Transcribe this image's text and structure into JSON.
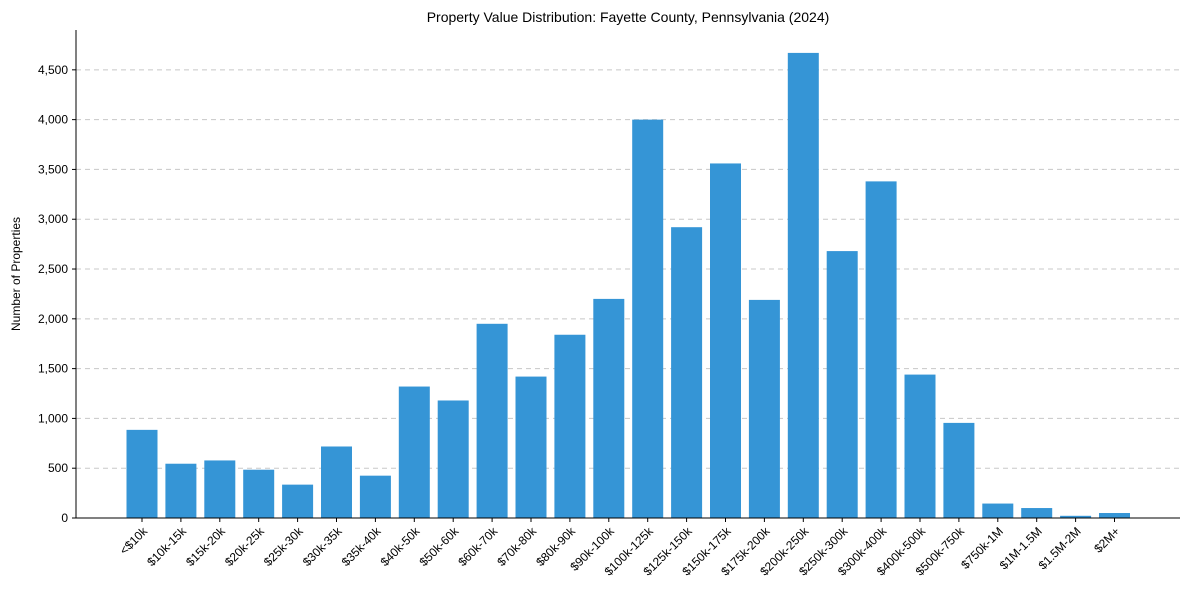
{
  "colors": {
    "bar": "#3595d6",
    "grid": "#c8c8c8",
    "axis": "#000000",
    "background": "#ffffff"
  },
  "chart_data": {
    "type": "bar",
    "title": "Property Value Distribution: Fayette County, Pennsylvania (2024)",
    "xlabel": "",
    "ylabel": "Number of Properties",
    "ylim": [
      0,
      4900
    ],
    "yticks": [
      0,
      500,
      1000,
      1500,
      2000,
      2500,
      3000,
      3500,
      4000,
      4500
    ],
    "ytick_labels": [
      "0",
      "500",
      "1,000",
      "1,500",
      "2,000",
      "2,500",
      "3,000",
      "3,500",
      "4,000",
      "4,500"
    ],
    "grid": "y-dashed",
    "legend": "none",
    "categories": [
      "<$10k",
      "$10k-15k",
      "$15k-20k",
      "$20k-25k",
      "$25k-30k",
      "$30k-35k",
      "$35k-40k",
      "$40k-50k",
      "$50k-60k",
      "$60k-70k",
      "$70k-80k",
      "$80k-90k",
      "$90k-100k",
      "$100k-125k",
      "$125k-150k",
      "$150k-175k",
      "$175k-200k",
      "$200k-250k",
      "$250k-300k",
      "$300k-400k",
      "$400k-500k",
      "$500k-750k",
      "$750k-1M",
      "$1M-1.5M",
      "$1.5M-2M",
      "$2M+"
    ],
    "values": [
      885,
      545,
      578,
      485,
      335,
      718,
      425,
      1320,
      1180,
      1950,
      1420,
      1840,
      2200,
      4000,
      2920,
      3560,
      2190,
      4670,
      2680,
      3380,
      1440,
      955,
      145,
      100,
      22,
      50
    ]
  }
}
